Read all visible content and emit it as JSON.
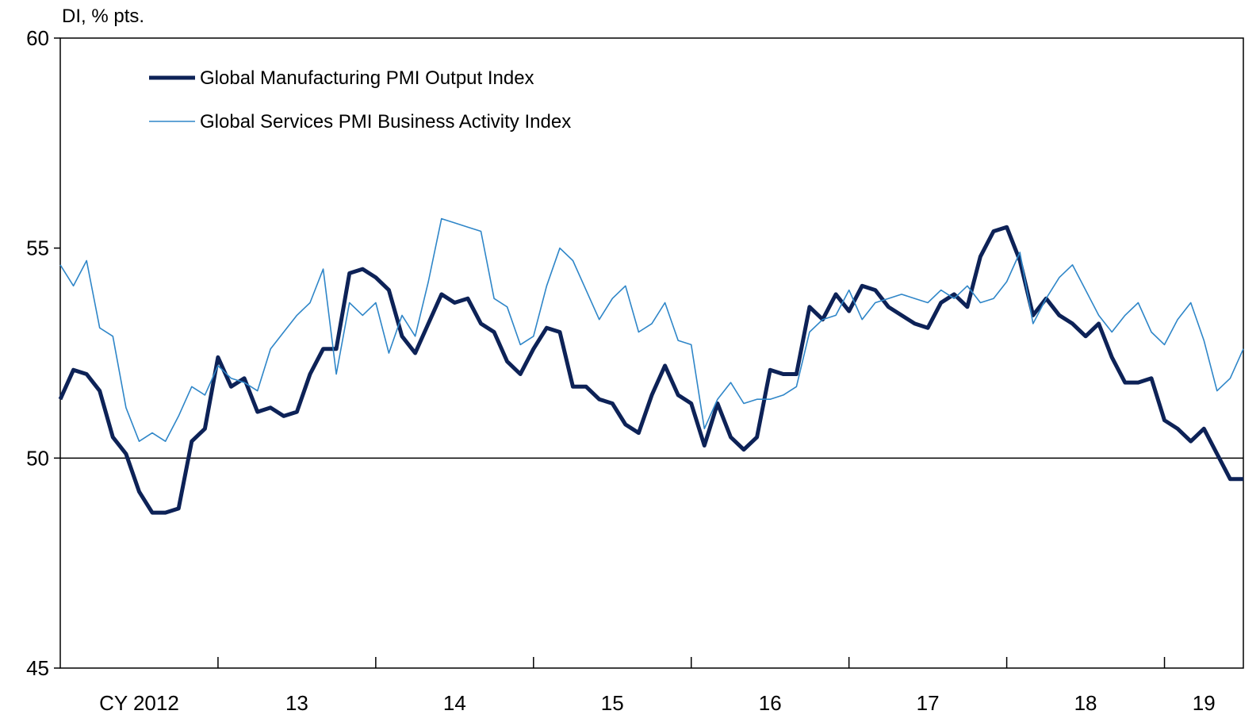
{
  "chart_data": {
    "type": "line",
    "ylabel": "DI, % pts.",
    "ylim": [
      45,
      60
    ],
    "yticks": [
      45,
      50,
      55,
      60
    ],
    "xlim": [
      0,
      90
    ],
    "year_labels": [
      "CY 2012",
      "13",
      "14",
      "15",
      "16",
      "17",
      "18",
      "19"
    ],
    "reference_line": 50,
    "legend_position": "top-left",
    "series": [
      {
        "name": "Global Manufacturing PMI Output Index",
        "color": "#0d2257",
        "values": [
          51.4,
          52.1,
          52.0,
          51.6,
          50.5,
          50.1,
          49.2,
          48.7,
          48.7,
          48.8,
          50.4,
          50.7,
          52.4,
          51.7,
          51.9,
          51.1,
          51.2,
          51.0,
          51.1,
          52.0,
          52.6,
          52.6,
          54.4,
          54.5,
          54.3,
          54.0,
          52.9,
          52.5,
          53.2,
          53.9,
          53.7,
          53.8,
          53.2,
          53.0,
          52.3,
          52.0,
          52.6,
          53.1,
          53.0,
          51.7,
          51.7,
          51.4,
          51.3,
          50.8,
          50.6,
          51.5,
          52.2,
          51.5,
          51.3,
          50.3,
          51.3,
          50.5,
          50.2,
          50.5,
          52.1,
          52.0,
          52.0,
          53.6,
          53.3,
          53.9,
          53.5,
          54.1,
          54.0,
          53.6,
          53.4,
          53.2,
          53.1,
          53.7,
          53.9,
          53.6,
          54.8,
          55.4,
          55.5,
          54.7,
          53.4,
          53.8,
          53.4,
          53.2,
          52.9,
          53.2,
          52.4,
          51.8,
          51.8,
          51.9,
          50.9,
          50.7,
          50.4,
          50.7,
          50.1,
          49.5,
          49.5
        ]
      },
      {
        "name": "Global Services PMI Business Activity Index",
        "color": "#2f86c8",
        "values": [
          54.6,
          54.1,
          54.7,
          53.1,
          52.9,
          51.2,
          50.4,
          50.6,
          50.4,
          51.0,
          51.7,
          51.5,
          52.2,
          51.9,
          51.8,
          51.6,
          52.6,
          53.0,
          53.4,
          53.7,
          54.5,
          52.0,
          53.7,
          53.4,
          53.7,
          52.5,
          53.4,
          52.9,
          54.2,
          55.7,
          55.6,
          55.5,
          55.4,
          53.8,
          53.6,
          52.7,
          52.9,
          54.1,
          55.0,
          54.7,
          54.0,
          53.3,
          53.8,
          54.1,
          53.0,
          53.2,
          53.7,
          52.8,
          52.7,
          50.7,
          51.4,
          51.8,
          51.3,
          51.4,
          51.4,
          51.5,
          51.7,
          53.0,
          53.3,
          53.4,
          54.0,
          53.3,
          53.7,
          53.8,
          53.9,
          53.8,
          53.7,
          54.0,
          53.8,
          54.1,
          53.7,
          53.8,
          54.2,
          54.9,
          53.2,
          53.8,
          54.3,
          54.6,
          54.0,
          53.4,
          53.0,
          53.4,
          53.7,
          53.0,
          52.7,
          53.3,
          53.7,
          52.8,
          51.6,
          51.9,
          52.6
        ]
      }
    ]
  }
}
